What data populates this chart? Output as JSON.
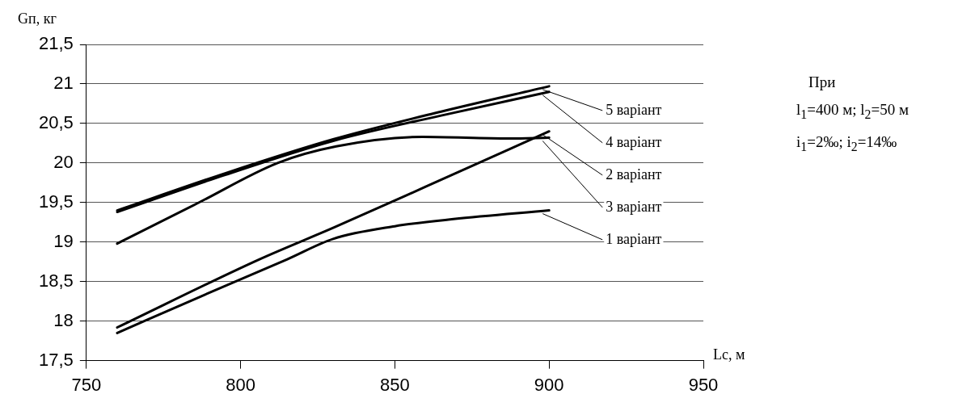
{
  "chart_data": {
    "type": "line",
    "xlabel": "Lc, м",
    "ylabel": "Gп, кг",
    "xlim": [
      750,
      950
    ],
    "xticks": [
      750,
      800,
      850,
      900,
      950
    ],
    "ylim": [
      17.5,
      21.5
    ],
    "yticks": [
      {
        "value": 17.5,
        "label": "17,5"
      },
      18,
      {
        "value": 18.5,
        "label": "18,5"
      },
      19,
      {
        "value": 19.5,
        "label": "19,5"
      },
      20,
      {
        "value": 20.5,
        "label": "20,5"
      },
      21,
      {
        "value": 21.5,
        "label": "21,5"
      }
    ],
    "grid": "y",
    "legend": "right",
    "marker": "none",
    "line_style": "solid",
    "series": [
      {
        "name": "1 варіант",
        "color": "#000000",
        "x": [
          760,
          787,
          815,
          830,
          850,
          869,
          900
        ],
        "values": [
          17.85,
          18.31,
          18.78,
          19.04,
          19.2,
          19.29,
          19.4
        ]
      },
      {
        "name": "2 варіант",
        "color": "#000000",
        "x": [
          760,
          806,
          830,
          860,
          900
        ],
        "values": [
          17.92,
          18.78,
          19.18,
          19.7,
          20.4
        ]
      },
      {
        "name": "3 варіант",
        "color": "#000000",
        "x": [
          760,
          786,
          812,
          831,
          859,
          887,
          900
        ],
        "values": [
          18.98,
          19.49,
          20.0,
          20.21,
          20.33,
          20.31,
          20.32
        ]
      },
      {
        "name": "4 варіант",
        "color": "#000000",
        "x": [
          760,
          795,
          830,
          865,
          900
        ],
        "values": [
          19.38,
          19.85,
          20.28,
          20.6,
          20.9
        ]
      },
      {
        "name": "5 варіант",
        "color": "#000000",
        "x": [
          760,
          795,
          830,
          865,
          900
        ],
        "values": [
          19.4,
          19.87,
          20.3,
          20.65,
          20.97
        ]
      }
    ],
    "annotations": [
      "При",
      "l$_{1}$=400 м;  l$_{2}$=50 м",
      "i$_{1}$=2‰; i$_{2}$=14‰"
    ]
  }
}
